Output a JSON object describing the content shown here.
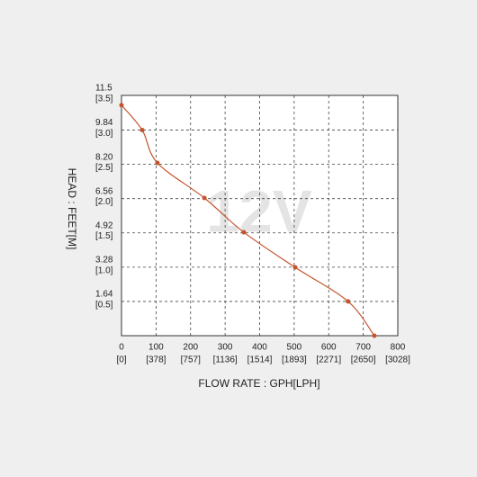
{
  "chart_data": {
    "type": "line",
    "watermark": "12V",
    "x_label": "FLOW RATE : GPH[LPH]",
    "y_label": "HEAD : FEET[M]",
    "x": [
      0,
      60,
      104,
      240,
      354,
      503,
      656,
      732
    ],
    "series": [
      {
        "color": "#c4532b",
        "values": [
          11.03,
          9.84,
          8.27,
          6.59,
          4.95,
          3.27,
          1.64,
          0
        ]
      }
    ],
    "xlim": [
      0,
      800
    ],
    "xticks": [
      0,
      100,
      200,
      300,
      400,
      500,
      600,
      700,
      800
    ],
    "x2lim": [
      0,
      3028
    ],
    "x2ticks": [
      {
        "value": 0,
        "label": "[0]"
      },
      {
        "value": 378,
        "label": "[378]"
      },
      {
        "value": 757,
        "label": "[757]"
      },
      {
        "value": 1136,
        "label": "[1136]"
      },
      {
        "value": 1514,
        "label": "[1514]"
      },
      {
        "value": 1893,
        "label": "[1893]"
      },
      {
        "value": 2271,
        "label": "[2271]"
      },
      {
        "value": 2650,
        "label": "[2650]"
      },
      {
        "value": 3028,
        "label": "[3028]"
      }
    ],
    "ylim": [
      0,
      11.5
    ],
    "yticks": [
      1.64,
      3.28,
      4.92,
      6.56,
      {
        "value": 8.2,
        "label": "8.20"
      },
      9.84,
      11.5
    ],
    "y2lim": [
      0,
      3.5
    ],
    "y2ticks": [
      {
        "value": 0.5,
        "label": "[0.5]"
      },
      {
        "value": 1.0,
        "label": "[1.0]"
      },
      {
        "value": 1.5,
        "label": "[1.5]"
      },
      {
        "value": 2.0,
        "label": "[2.0]"
      },
      {
        "value": 2.5,
        "label": "[2.5]"
      },
      {
        "value": 3.0,
        "label": "[3.0]"
      },
      {
        "value": 3.5,
        "label": "[3.5]"
      }
    ],
    "grid": true
  }
}
